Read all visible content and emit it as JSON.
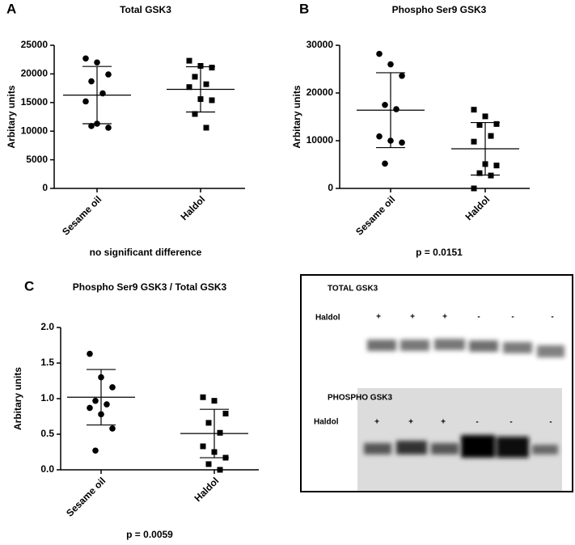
{
  "chart_data": [
    {
      "type": "dot",
      "panel": "A",
      "title": "Total GSK3",
      "ylabel": "Arbitary units",
      "note": "no significant difference",
      "ylim": [
        0,
        25000
      ],
      "yticks": [
        0,
        5000,
        10000,
        15000,
        20000,
        25000
      ],
      "color": "#000000",
      "series": [
        {
          "name": "Sesame oil",
          "marker": "circle",
          "values": [
            22700,
            22000,
            19900,
            18700,
            16600,
            15200,
            11300,
            10600,
            10900
          ],
          "mean": 16300,
          "sd": 5000
        },
        {
          "name": "Haldol",
          "marker": "square",
          "values": [
            22300,
            21400,
            21100,
            19500,
            18200,
            17700,
            15600,
            15400,
            13000,
            10600
          ],
          "mean": 17300,
          "sd": 3950
        }
      ]
    },
    {
      "type": "dot",
      "panel": "B",
      "title": "Phospho Ser9 GSK3",
      "ylabel": "Arbitary units",
      "note": "p = 0.0151",
      "ylim": [
        0,
        30000
      ],
      "yticks": [
        0,
        10000,
        20000,
        30000
      ],
      "color": "#000000",
      "series": [
        {
          "name": "Sesame oil",
          "marker": "circle",
          "values": [
            28200,
            26000,
            23600,
            17500,
            16600,
            10900,
            10000,
            9600,
            5200
          ],
          "mean": 16400,
          "sd": 7850
        },
        {
          "name": "Haldol",
          "marker": "square",
          "values": [
            16500,
            15100,
            13500,
            13300,
            11000,
            9800,
            5100,
            4800,
            3200,
            2700,
            0
          ],
          "mean": 8300,
          "sd": 5500
        }
      ]
    },
    {
      "type": "dot",
      "panel": "C",
      "title": "Phospho Ser9 GSK3 / Total GSK3",
      "ylabel": "Arbitary units",
      "note": "p = 0.0059",
      "ylim": [
        0,
        2
      ],
      "yticks": [
        {
          "value": 0,
          "label": "0.0"
        },
        0.5,
        {
          "value": 1,
          "label": "1.0"
        },
        1.5,
        {
          "value": 2,
          "label": "2.0"
        }
      ],
      "color": "#000000",
      "series": [
        {
          "name": "Sesame oil",
          "marker": "circle",
          "values": [
            1.63,
            1.3,
            1.16,
            0.97,
            0.92,
            0.87,
            0.78,
            0.58,
            0.27
          ],
          "mean": 1.02,
          "sd": 0.39
        },
        {
          "name": "Haldol",
          "marker": "square",
          "values": [
            1.02,
            0.97,
            0.79,
            0.66,
            0.52,
            0.33,
            0.25,
            0.17,
            0.08,
            0
          ],
          "mean": 0.51,
          "sd": 0.34
        }
      ]
    }
  ],
  "blot": {
    "total": {
      "title": "TOTAL GSK3",
      "row_label": "Haldol",
      "signs": [
        "+",
        "+",
        "+",
        "-",
        "-",
        "-"
      ]
    },
    "phospho": {
      "title": "PHOSPHO GSK3",
      "row_label": "Haldol",
      "signs": [
        "+",
        "+",
        "+",
        "-",
        "-",
        "-"
      ]
    }
  }
}
